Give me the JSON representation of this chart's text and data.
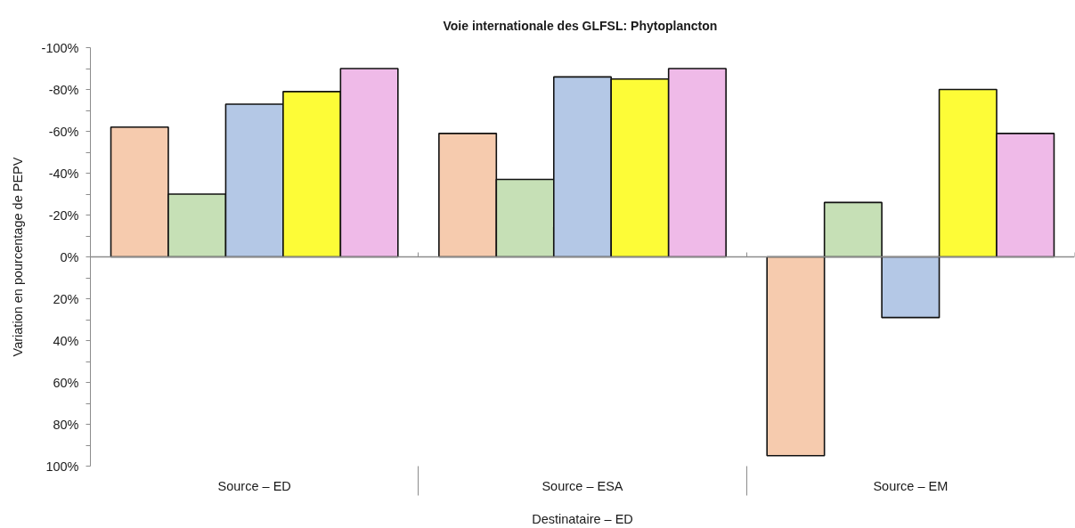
{
  "chart_data": {
    "type": "bar",
    "title": "Voie internationale des GLFSL: Phytoplancton",
    "xlabel": "Destinataire – ED",
    "ylabel": "Variation en pourcentage de PEPV",
    "categories": [
      "Source – ED",
      "Source – ESA",
      "Source – EM"
    ],
    "series": [
      {
        "color": "#f6cbae",
        "values": [
          -62,
          -59,
          95
        ]
      },
      {
        "color": "#c6e0b6",
        "values": [
          -30,
          -37,
          -26
        ]
      },
      {
        "color": "#b4c8e6",
        "values": [
          -73,
          -86,
          29
        ]
      },
      {
        "color": "#fdfc37",
        "values": [
          -79,
          -85,
          -80
        ]
      },
      {
        "color": "#efbae8",
        "values": [
          -90,
          -90,
          -59
        ]
      }
    ],
    "ylim": [
      100,
      -100
    ],
    "yticks": [
      {
        "value": -100,
        "label": "-100%"
      },
      {
        "value": -90,
        "label": null
      },
      {
        "value": -80,
        "label": "-80%"
      },
      {
        "value": -70,
        "label": null
      },
      {
        "value": -60,
        "label": "-60%"
      },
      {
        "value": -50,
        "label": null
      },
      {
        "value": -40,
        "label": "-40%"
      },
      {
        "value": -30,
        "label": null
      },
      {
        "value": -20,
        "label": "-20%"
      },
      {
        "value": -10,
        "label": null
      },
      {
        "value": 0,
        "label": "0%"
      },
      {
        "value": 10,
        "label": null
      },
      {
        "value": 20,
        "label": "20%"
      },
      {
        "value": 30,
        "label": null
      },
      {
        "value": 40,
        "label": "40%"
      },
      {
        "value": 50,
        "label": null
      },
      {
        "value": 60,
        "label": "60%"
      },
      {
        "value": 70,
        "label": null
      },
      {
        "value": 80,
        "label": "80%"
      },
      {
        "value": 90,
        "label": null
      },
      {
        "value": 100,
        "label": "100%"
      }
    ],
    "ref_lines": [
      {
        "axis": "y",
        "value": 0,
        "color": "#8c8c8c"
      }
    ],
    "grid": false
  }
}
